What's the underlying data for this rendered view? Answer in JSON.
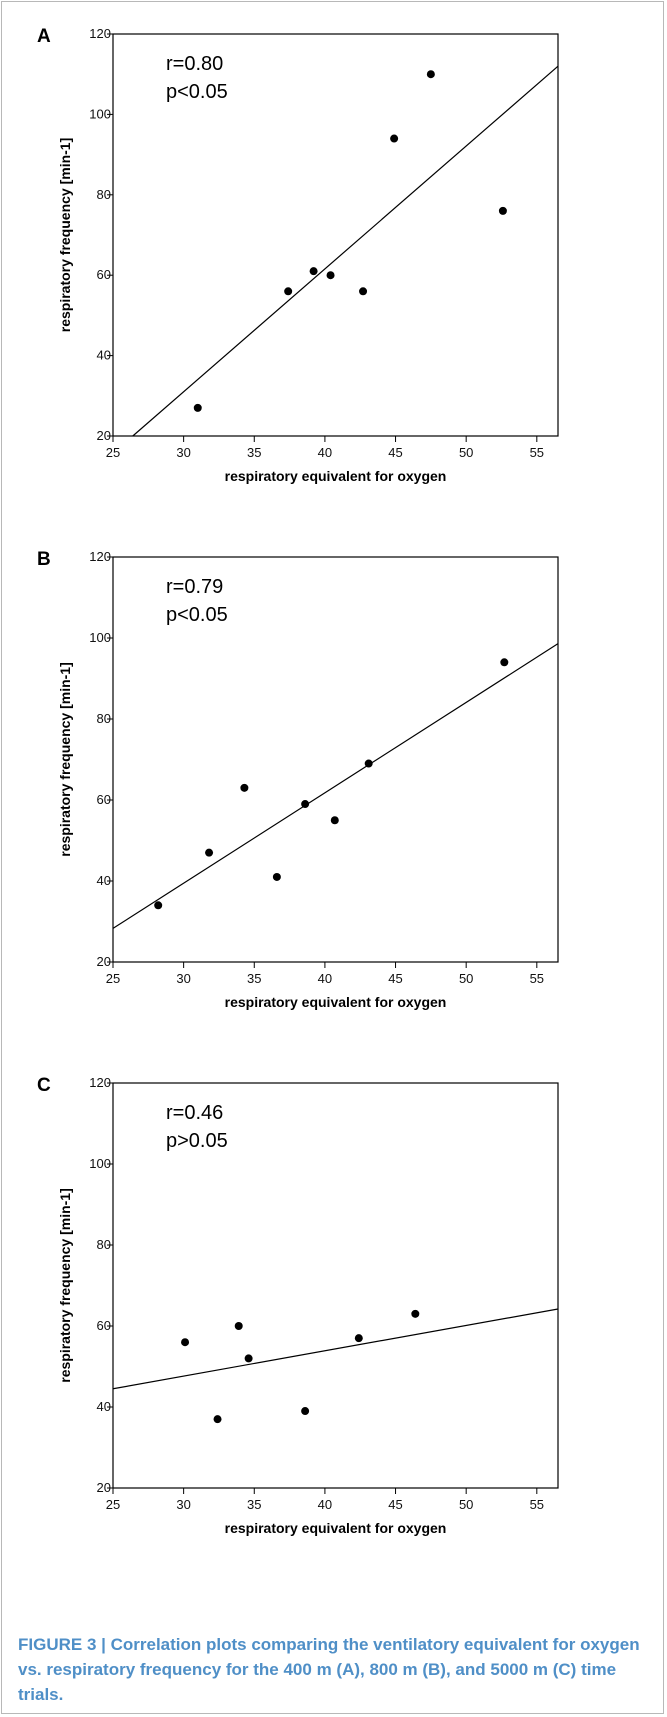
{
  "caption": "FIGURE 3 | Correlation plots comparing the ventilatory equivalent for oxygen vs. respiratory frequency for the 400 m (A), 800 m (B), and 5000 m (C) time trials.",
  "chart_data": [
    {
      "type": "scatter",
      "panel": "A",
      "xlabel": "respiratory equivalent for oxygen",
      "ylabel": "respiratory frequency [min-1]",
      "xlim": [
        25,
        56.5
      ],
      "ylim": [
        20,
        120
      ],
      "xticks": [
        25,
        30,
        35,
        40,
        45,
        50,
        55
      ],
      "yticks": [
        20,
        40,
        60,
        80,
        100,
        120
      ],
      "annotation": [
        "r=0.80",
        "p<0.05"
      ],
      "points": [
        [
          31.0,
          27
        ],
        [
          37.4,
          56
        ],
        [
          39.2,
          61
        ],
        [
          40.4,
          60
        ],
        [
          42.7,
          56
        ],
        [
          44.9,
          94
        ],
        [
          47.5,
          110
        ],
        [
          52.6,
          76
        ]
      ],
      "fit_line": [
        [
          26.4,
          20
        ],
        [
          56.5,
          112
        ]
      ]
    },
    {
      "type": "scatter",
      "panel": "B",
      "xlabel": "respiratory equivalent for oxygen",
      "ylabel": "respiratory frequency [min-1]",
      "xlim": [
        25,
        56.5
      ],
      "ylim": [
        20,
        120
      ],
      "xticks": [
        25,
        30,
        35,
        40,
        45,
        50,
        55
      ],
      "yticks": [
        20,
        40,
        60,
        80,
        100,
        120
      ],
      "annotation": [
        "r=0.79",
        "p<0.05"
      ],
      "points": [
        [
          28.2,
          34
        ],
        [
          31.8,
          47
        ],
        [
          34.3,
          63
        ],
        [
          36.6,
          41
        ],
        [
          38.6,
          59
        ],
        [
          40.7,
          55
        ],
        [
          43.1,
          69
        ],
        [
          52.7,
          94
        ]
      ],
      "fit_line": [
        [
          25,
          28.3
        ],
        [
          56.5,
          98.6
        ]
      ]
    },
    {
      "type": "scatter",
      "panel": "C",
      "xlabel": "respiratory equivalent for oxygen",
      "ylabel": "respiratory frequency [min-1]",
      "xlim": [
        25,
        56.5
      ],
      "ylim": [
        20,
        120
      ],
      "xticks": [
        25,
        30,
        35,
        40,
        45,
        50,
        55
      ],
      "yticks": [
        20,
        40,
        60,
        80,
        100,
        120
      ],
      "annotation": [
        "r=0.46",
        "p>0.05"
      ],
      "points": [
        [
          30.1,
          56
        ],
        [
          32.4,
          37
        ],
        [
          33.9,
          60
        ],
        [
          34.6,
          52
        ],
        [
          38.6,
          39
        ],
        [
          42.4,
          57
        ],
        [
          46.4,
          63
        ]
      ],
      "fit_line": [
        [
          25,
          44.5
        ],
        [
          56.5,
          64.2
        ]
      ]
    }
  ]
}
